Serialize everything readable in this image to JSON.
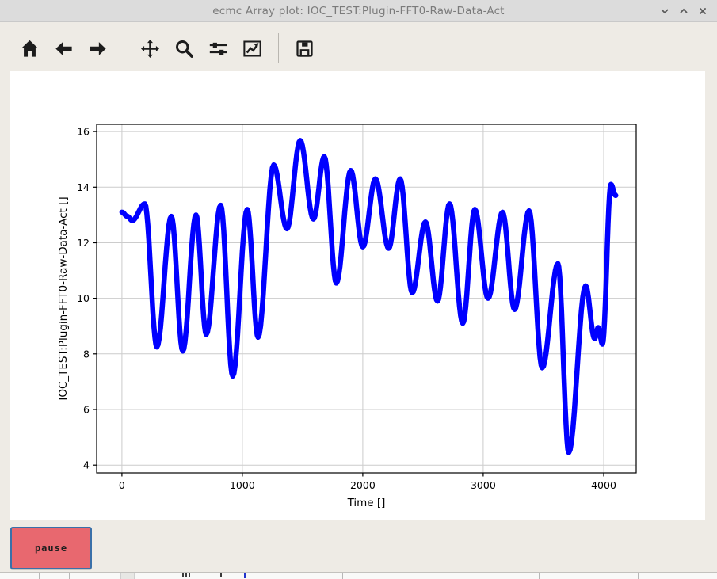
{
  "window": {
    "title": "ecmc Array plot: IOC_TEST:Plugin-FFT0-Raw-Data-Act",
    "controls": [
      {
        "name": "minimize",
        "icon": "chevron-down-icon"
      },
      {
        "name": "maximize",
        "icon": "chevron-up-icon"
      },
      {
        "name": "close",
        "icon": "close-icon"
      }
    ]
  },
  "toolbar": {
    "items": [
      {
        "type": "button",
        "name": "home",
        "icon": "home-icon"
      },
      {
        "type": "button",
        "name": "back",
        "icon": "arrow-left-icon"
      },
      {
        "type": "button",
        "name": "forward",
        "icon": "arrow-right-icon"
      },
      {
        "type": "separator"
      },
      {
        "type": "button",
        "name": "pan",
        "icon": "move-icon"
      },
      {
        "type": "button",
        "name": "zoom",
        "icon": "magnifier-icon"
      },
      {
        "type": "button",
        "name": "configure-subplots",
        "icon": "sliders-icon"
      },
      {
        "type": "button",
        "name": "customize-axes",
        "icon": "chart-line-icon"
      },
      {
        "type": "separator"
      },
      {
        "type": "button",
        "name": "save",
        "icon": "floppy-icon"
      }
    ]
  },
  "chart_data": {
    "type": "line",
    "title": "",
    "xlabel": "Time []",
    "ylabel": "IOC_TEST:Plugin-FFT0-Raw-Data-Act []",
    "x_ticks": [
      0,
      1000,
      2000,
      3000,
      4000
    ],
    "y_ticks": [
      4,
      6,
      8,
      10,
      12,
      14,
      16
    ],
    "xlim": [
      -210,
      4270
    ],
    "ylim": [
      3.72,
      16.26
    ],
    "grid": true,
    "grid_color": "#cccccc",
    "line_color": "#0000ff",
    "line_width": 6.5,
    "series": [
      {
        "name": "IOC_TEST:Plugin-FFT0-Raw-Data-Act",
        "interpolation": "cosine-extrema",
        "control_points": [
          [
            0,
            13.1
          ],
          [
            45,
            12.95
          ],
          [
            85,
            12.8
          ],
          [
            190,
            13.4
          ],
          [
            290,
            8.25
          ],
          [
            410,
            12.95
          ],
          [
            505,
            8.1
          ],
          [
            615,
            13.0
          ],
          [
            700,
            8.7
          ],
          [
            820,
            13.35
          ],
          [
            920,
            7.2
          ],
          [
            1040,
            13.2
          ],
          [
            1130,
            8.6
          ],
          [
            1260,
            14.8
          ],
          [
            1370,
            12.5
          ],
          [
            1480,
            15.68
          ],
          [
            1590,
            12.85
          ],
          [
            1680,
            15.1
          ],
          [
            1780,
            10.55
          ],
          [
            1900,
            14.6
          ],
          [
            2000,
            11.85
          ],
          [
            2105,
            14.3
          ],
          [
            2215,
            11.8
          ],
          [
            2310,
            14.3
          ],
          [
            2410,
            10.2
          ],
          [
            2520,
            12.75
          ],
          [
            2620,
            9.9
          ],
          [
            2720,
            13.4
          ],
          [
            2830,
            9.1
          ],
          [
            2930,
            13.2
          ],
          [
            3040,
            10.0
          ],
          [
            3160,
            13.1
          ],
          [
            3260,
            9.6
          ],
          [
            3380,
            13.15
          ],
          [
            3490,
            7.5
          ],
          [
            3620,
            11.25
          ],
          [
            3710,
            4.45
          ],
          [
            3850,
            10.45
          ],
          [
            3925,
            8.55
          ],
          [
            3955,
            8.95
          ],
          [
            3990,
            8.35
          ],
          [
            4060,
            14.1
          ],
          [
            4100,
            13.7
          ]
        ]
      }
    ]
  },
  "pause_button": {
    "label": "pause",
    "bg": "#e8686f",
    "border": "#3a70a9"
  },
  "bottom_strip": {
    "marks": [
      {
        "type": "sep",
        "x": 49
      },
      {
        "type": "sep",
        "x": 87
      },
      {
        "type": "square",
        "x": 152,
        "w": 16
      },
      {
        "type": "dark",
        "x": 230
      },
      {
        "type": "dark",
        "x": 234
      },
      {
        "type": "dark",
        "x": 238
      },
      {
        "type": "dark",
        "x": 278
      },
      {
        "type": "blue",
        "x": 308
      },
      {
        "type": "sep",
        "x": 432
      },
      {
        "type": "sep",
        "x": 555
      },
      {
        "type": "sep",
        "x": 680
      },
      {
        "type": "sep",
        "x": 805
      }
    ]
  }
}
